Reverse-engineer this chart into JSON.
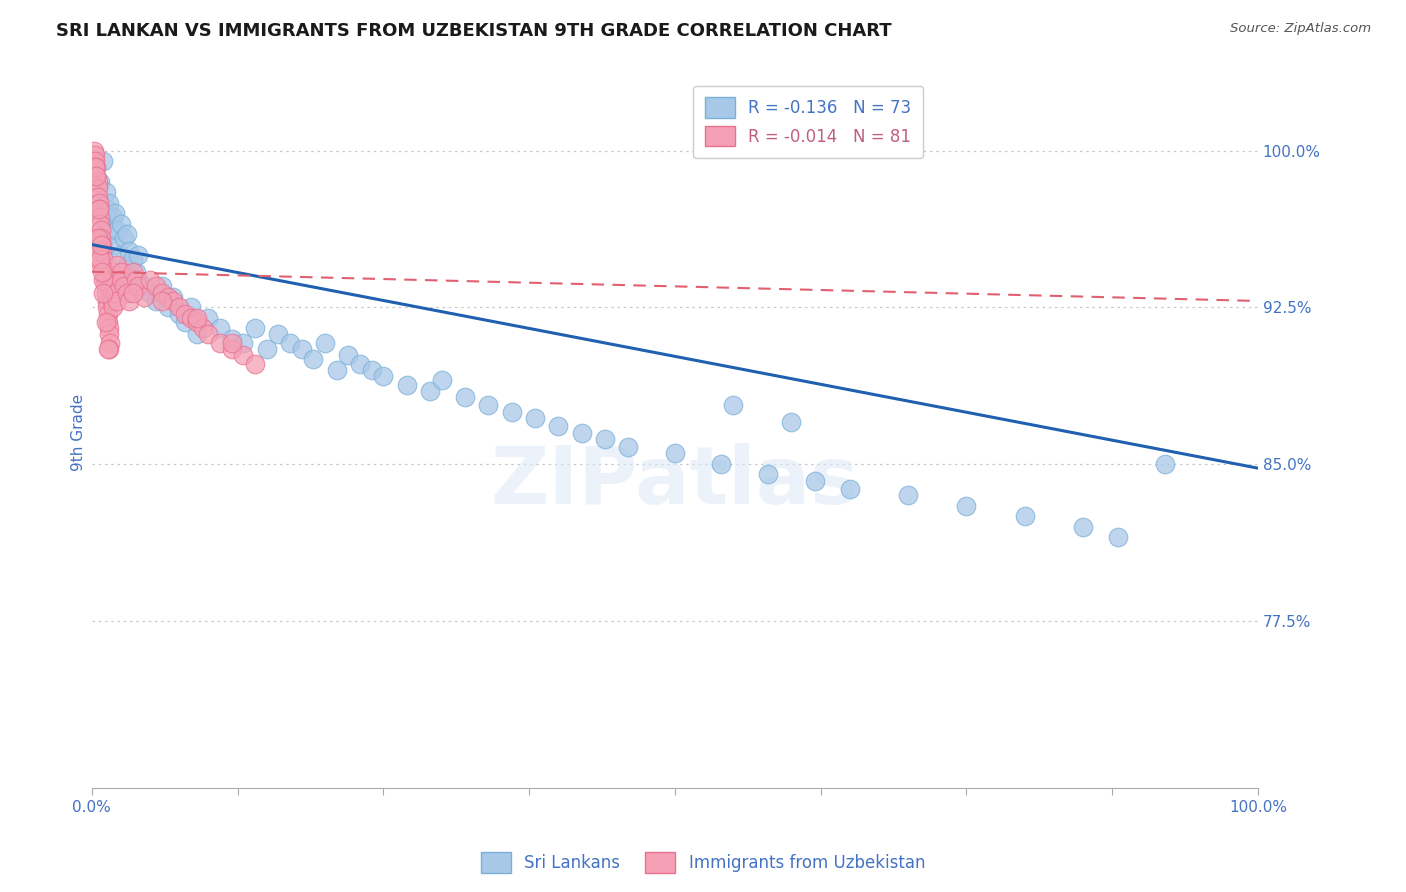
{
  "title": "SRI LANKAN VS IMMIGRANTS FROM UZBEKISTAN 9TH GRADE CORRELATION CHART",
  "source": "Source: ZipAtlas.com",
  "ylabel": "9th Grade",
  "y_tick_labels": [
    "100.0%",
    "92.5%",
    "85.0%",
    "77.5%"
  ],
  "y_tick_values": [
    1.0,
    0.925,
    0.85,
    0.775
  ],
  "x_range": [
    0.0,
    1.0
  ],
  "y_range": [
    0.695,
    1.035
  ],
  "watermark": "ZIPatlas",
  "legend_blue_r": "R = -0.136",
  "legend_blue_n": "N = 73",
  "legend_pink_r": "R = -0.014",
  "legend_pink_n": "N = 81",
  "legend_label_blue": "Sri Lankans",
  "legend_label_pink": "Immigrants from Uzbekistan",
  "blue_color": "#a8c8e8",
  "pink_color": "#f4a0b5",
  "blue_edge_color": "#7ab0d8",
  "pink_edge_color": "#e87090",
  "blue_line_color": "#2060b0",
  "pink_line_color": "#e06070",
  "blue_scatter_x": [
    0.005,
    0.007,
    0.01,
    0.01,
    0.012,
    0.012,
    0.014,
    0.015,
    0.015,
    0.018,
    0.02,
    0.02,
    0.022,
    0.025,
    0.025,
    0.028,
    0.03,
    0.03,
    0.032,
    0.035,
    0.038,
    0.04,
    0.04,
    0.045,
    0.05,
    0.055,
    0.06,
    0.065,
    0.07,
    0.075,
    0.08,
    0.085,
    0.09,
    0.1,
    0.11,
    0.12,
    0.13,
    0.14,
    0.15,
    0.16,
    0.17,
    0.18,
    0.19,
    0.2,
    0.21,
    0.22,
    0.23,
    0.24,
    0.25,
    0.27,
    0.29,
    0.3,
    0.32,
    0.34,
    0.36,
    0.38,
    0.4,
    0.42,
    0.44,
    0.46,
    0.5,
    0.54,
    0.58,
    0.62,
    0.65,
    0.7,
    0.75,
    0.8,
    0.85,
    0.88,
    0.55,
    0.6,
    0.92
  ],
  "blue_scatter_y": [
    0.975,
    0.985,
    0.97,
    0.995,
    0.965,
    0.98,
    0.972,
    0.96,
    0.975,
    0.968,
    0.955,
    0.97,
    0.962,
    0.95,
    0.965,
    0.958,
    0.945,
    0.96,
    0.952,
    0.948,
    0.942,
    0.938,
    0.95,
    0.935,
    0.932,
    0.928,
    0.935,
    0.925,
    0.93,
    0.922,
    0.918,
    0.925,
    0.912,
    0.92,
    0.915,
    0.91,
    0.908,
    0.915,
    0.905,
    0.912,
    0.908,
    0.905,
    0.9,
    0.908,
    0.895,
    0.902,
    0.898,
    0.895,
    0.892,
    0.888,
    0.885,
    0.89,
    0.882,
    0.878,
    0.875,
    0.872,
    0.868,
    0.865,
    0.862,
    0.858,
    0.855,
    0.85,
    0.845,
    0.842,
    0.838,
    0.835,
    0.83,
    0.825,
    0.82,
    0.815,
    0.878,
    0.87,
    0.85
  ],
  "pink_scatter_x": [
    0.002,
    0.003,
    0.003,
    0.004,
    0.004,
    0.005,
    0.005,
    0.005,
    0.006,
    0.006,
    0.007,
    0.007,
    0.008,
    0.008,
    0.009,
    0.009,
    0.01,
    0.01,
    0.011,
    0.011,
    0.012,
    0.012,
    0.013,
    0.013,
    0.014,
    0.014,
    0.015,
    0.015,
    0.016,
    0.016,
    0.017,
    0.017,
    0.018,
    0.018,
    0.019,
    0.02,
    0.02,
    0.022,
    0.022,
    0.025,
    0.025,
    0.028,
    0.03,
    0.032,
    0.035,
    0.038,
    0.04,
    0.045,
    0.05,
    0.055,
    0.06,
    0.065,
    0.07,
    0.075,
    0.08,
    0.085,
    0.09,
    0.095,
    0.1,
    0.11,
    0.12,
    0.13,
    0.14,
    0.015,
    0.01,
    0.008,
    0.006,
    0.005,
    0.007,
    0.009,
    0.003,
    0.004,
    0.006,
    0.008,
    0.01,
    0.012,
    0.014,
    0.035,
    0.06,
    0.09,
    0.12
  ],
  "pink_scatter_y": [
    1.0,
    0.998,
    0.995,
    0.992,
    0.988,
    0.985,
    0.982,
    0.978,
    0.975,
    0.972,
    0.968,
    0.965,
    0.962,
    0.958,
    0.955,
    0.952,
    0.948,
    0.944,
    0.941,
    0.938,
    0.935,
    0.932,
    0.928,
    0.925,
    0.922,
    0.918,
    0.915,
    0.912,
    0.908,
    0.935,
    0.932,
    0.928,
    0.925,
    0.942,
    0.938,
    0.935,
    0.932,
    0.928,
    0.945,
    0.942,
    0.938,
    0.935,
    0.932,
    0.928,
    0.942,
    0.938,
    0.935,
    0.93,
    0.938,
    0.935,
    0.932,
    0.93,
    0.928,
    0.925,
    0.922,
    0.92,
    0.918,
    0.915,
    0.912,
    0.908,
    0.905,
    0.902,
    0.898,
    0.905,
    0.938,
    0.945,
    0.952,
    0.958,
    0.948,
    0.942,
    0.992,
    0.988,
    0.972,
    0.955,
    0.932,
    0.918,
    0.905,
    0.932,
    0.928,
    0.92,
    0.908
  ],
  "blue_trendline_x": [
    0.0,
    1.0
  ],
  "blue_trendline_y": [
    0.955,
    0.848
  ],
  "pink_trendline_x": [
    0.0,
    1.0
  ],
  "pink_trendline_y": [
    0.942,
    0.928
  ],
  "grid_color": "#c8c8c8",
  "background_color": "#ffffff",
  "title_fontsize": 13,
  "axis_label_color": "#4472c4",
  "tick_label_color": "#4472c4",
  "legend_text_color_blue": "#4472c4",
  "legend_text_color_pink": "#c0607a"
}
